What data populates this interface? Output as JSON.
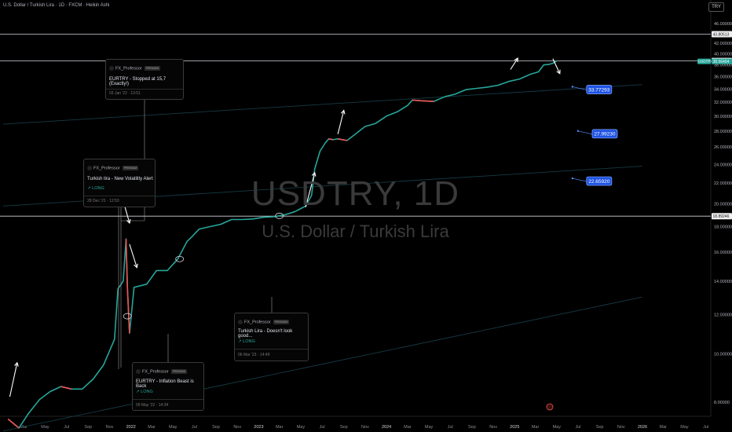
{
  "header": {
    "title": "U.S. Dollar / Turkish Lira · 1D · FXCM · Heikin Ashi",
    "currency": "TRY"
  },
  "watermark": {
    "symbol": "USDTRY, 1D",
    "name": "U.S. Dollar / Turkish Lira"
  },
  "chart_data": {
    "type": "line",
    "title": "",
    "xlabel": "",
    "ylabel": "",
    "y_scale": "log",
    "ylim": [
      7.5,
      46.5
    ],
    "grid": false,
    "y_ticks": [
      "46.00000",
      "42.00000",
      "40.00000",
      "38.00000",
      "36.00000",
      "34.00000",
      "32.00000",
      "30.00000",
      "28.00000",
      "26.00000",
      "24.00000",
      "22.00000",
      "20.00000",
      "18.00000",
      "16.00000",
      "14.00000",
      "12.00000",
      "10.00000",
      "8.00000"
    ],
    "x_ticks": [
      "Mar",
      "May",
      "Jul",
      "Sep",
      "Nov",
      "2022",
      "Mar",
      "May",
      "Jul",
      "Sep",
      "Nov",
      "2023",
      "Mar",
      "May",
      "Jul",
      "Sep",
      "Nov",
      "2024",
      "Mar",
      "May",
      "Jul",
      "Sep",
      "Nov",
      "2025",
      "Mar",
      "May",
      "Jul",
      "Sep",
      "Nov",
      "2026",
      "Mar",
      "May",
      "Jul"
    ],
    "series": [
      {
        "values": [
          [
            "2021-01-15",
            7.4
          ],
          [
            "2021-02-15",
            7.1
          ],
          [
            "2021-03-15",
            7.6
          ],
          [
            "2021-04-15",
            8.1
          ],
          [
            "2021-05-15",
            8.4
          ],
          [
            "2021-06-15",
            8.6
          ],
          [
            "2021-07-15",
            8.5
          ],
          [
            "2021-08-15",
            8.5
          ],
          [
            "2021-09-15",
            8.9
          ],
          [
            "2021-10-15",
            9.5
          ],
          [
            "2021-11-15",
            10.7
          ],
          [
            "2021-11-25",
            13.5
          ],
          [
            "2021-12-10",
            14.0
          ],
          [
            "2021-12-18",
            17.0
          ],
          [
            "2021-12-22",
            13.5
          ],
          [
            "2021-12-28",
            11.0
          ],
          [
            "2022-01-10",
            13.6
          ],
          [
            "2022-02-15",
            13.8
          ],
          [
            "2022-03-15",
            14.7
          ],
          [
            "2022-04-15",
            14.7
          ],
          [
            "2022-05-15",
            15.5
          ],
          [
            "2022-06-10",
            16.8
          ],
          [
            "2022-06-25",
            17.2
          ],
          [
            "2022-07-15",
            17.8
          ],
          [
            "2022-08-15",
            18.0
          ],
          [
            "2022-09-15",
            18.2
          ],
          [
            "2022-10-15",
            18.6
          ],
          [
            "2022-11-15",
            18.6
          ],
          [
            "2022-12-15",
            18.65
          ],
          [
            "2023-01-15",
            18.8
          ],
          [
            "2023-02-15",
            18.85
          ],
          [
            "2023-03-15",
            19.0
          ],
          [
            "2023-04-15",
            19.3
          ],
          [
            "2023-05-15",
            19.8
          ],
          [
            "2023-06-01",
            20.8
          ],
          [
            "2023-06-10",
            23.5
          ],
          [
            "2023-06-25",
            25.5
          ],
          [
            "2023-07-10",
            26.5
          ],
          [
            "2023-07-20",
            27.0
          ],
          [
            "2023-08-01",
            26.9
          ],
          [
            "2023-08-15",
            27.0
          ],
          [
            "2023-09-10",
            26.8
          ],
          [
            "2023-10-01",
            27.5
          ],
          [
            "2023-11-01",
            28.6
          ],
          [
            "2023-12-01",
            29.0
          ],
          [
            "2024-01-01",
            30.0
          ],
          [
            "2024-02-01",
            30.6
          ],
          [
            "2024-03-01",
            31.5
          ],
          [
            "2024-03-15",
            32.3
          ],
          [
            "2024-04-10",
            32.2
          ],
          [
            "2024-05-15",
            32.1
          ],
          [
            "2024-06-15",
            32.8
          ],
          [
            "2024-07-15",
            33.2
          ],
          [
            "2024-08-15",
            33.9
          ],
          [
            "2024-09-15",
            34.1
          ],
          [
            "2024-10-15",
            34.3
          ],
          [
            "2024-11-15",
            34.6
          ],
          [
            "2024-12-15",
            35.2
          ],
          [
            "2025-01-15",
            35.6
          ],
          [
            "2025-02-15",
            36.4
          ],
          [
            "2025-03-10",
            36.8
          ],
          [
            "2025-03-25",
            38.0
          ],
          [
            "2025-04-10",
            38.1
          ],
          [
            "2025-04-20",
            38.3
          ],
          [
            "2025-05-01",
            38.7
          ]
        ]
      }
    ],
    "current_price": "38.56494",
    "current_symbol": "USDTRY",
    "horizontal_levels": [
      {
        "price": 43.80513,
        "label": "43.80513"
      },
      {
        "price": 38.6958,
        "label": "38.69580"
      },
      {
        "price": 18.89246,
        "label": "18.89246"
      }
    ],
    "channel_lines": [
      {
        "from": [
          "2021-01-01",
          28.9
        ],
        "to": [
          "2025-12-31",
          34.7
        ]
      },
      {
        "from": [
          "2021-01-01",
          19.8
        ],
        "to": [
          "2025-12-31",
          23.8
        ]
      },
      {
        "from": [
          "2021-01-01",
          7.0
        ],
        "to": [
          "2025-12-31",
          13.0
        ]
      }
    ],
    "price_labels": [
      {
        "label": "33.77293",
        "at": [
          "2025-06-15",
          34.35
        ]
      },
      {
        "label": "27.99230",
        "at": [
          "2025-07-01",
          28.0
        ]
      },
      {
        "label": "22.65920",
        "at": [
          "2025-06-15",
          22.5
        ]
      }
    ],
    "arrows": [
      {
        "dir": "up",
        "from": [
          "2021-01-20",
          8.2
        ],
        "to": [
          "2021-02-10",
          9.6
        ]
      },
      {
        "dir": "down",
        "from": [
          "2021-12-15",
          19.7
        ],
        "to": [
          "2021-12-28",
          18.3
        ]
      },
      {
        "dir": "down",
        "from": [
          "2021-12-28",
          16.6
        ],
        "to": [
          "2022-01-18",
          14.9
        ]
      },
      {
        "dir": "up",
        "from": [
          "2023-05-15",
          19.7
        ],
        "to": [
          "2023-06-10",
          23.1
        ]
      },
      {
        "dir": "up",
        "from": [
          "2023-08-15",
          27.6
        ],
        "to": [
          "2023-09-01",
          30.8
        ]
      },
      {
        "dir": "up",
        "from": [
          "2024-12-20",
          37.2
        ],
        "to": [
          "2025-01-10",
          39.2
        ]
      },
      {
        "dir": "down",
        "from": [
          "2025-04-20",
          39.1
        ],
        "to": [
          "2025-05-10",
          36.5
        ]
      }
    ],
    "markers": [
      {
        "at": [
          "2021-12-22",
          11.9
        ]
      },
      {
        "at": [
          "2022-05-20",
          15.5
        ]
      },
      {
        "at": [
          "2023-03-01",
          18.92
        ]
      }
    ]
  },
  "ideas": [
    {
      "author": "FX_Professor",
      "badge": "PREMIUM",
      "title": "EURTRY - Stopped at 15,7 (Exactly!)",
      "tag": "",
      "date": "03 Jan '22 · 13:51"
    },
    {
      "author": "FX_Professor",
      "badge": "PREMIUM",
      "title": "Turkish lira - New Volatility Alert",
      "tag": "↗ LONG",
      "date": "28 Dec '21 · 12:53"
    },
    {
      "author": "FX_Professor",
      "badge": "PREMIUM",
      "title": "Turkish Lira - Doesn't look good...",
      "tag": "↗ LONG",
      "date": "06 Mar '23 · 14:49"
    },
    {
      "author": "FX_Professor",
      "badge": "PREMIUM",
      "title": "EURTRY - Inflation Beast is Back",
      "tag": "↗ LONG",
      "date": "09 May '22 · 14:34"
    }
  ],
  "event_icon": "lightning-icon"
}
